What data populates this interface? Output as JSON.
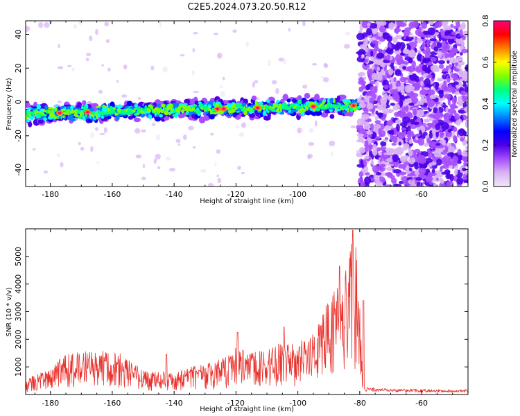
{
  "title": "C2E5.2024.073.20.50.R12",
  "chart_data": [
    {
      "type": "heatmap",
      "xlabel": "Height of straight line (km)",
      "ylabel": "Frequency (Hz)",
      "xlim": [
        -188,
        -45
      ],
      "ylim": [
        -50,
        48
      ],
      "x_ticks": [
        -180,
        -160,
        -140,
        -120,
        -100,
        -80,
        -60
      ],
      "y_ticks": [
        -40,
        -20,
        0,
        20,
        40
      ],
      "band": {
        "center_start_hz": -7,
        "center_end_hz": -2,
        "half_width_hz": 6,
        "x_range": [
          -188,
          -80
        ]
      },
      "noise_region_x": [
        -80,
        -45
      ],
      "hotspots_x": [
        -177,
        -168,
        -126,
        -124,
        -113,
        -95,
        -82
      ],
      "colorbar": {
        "label": "Normalized spectral amplitude",
        "range": [
          0,
          0.8
        ],
        "ticks": [
          "0.0",
          "0.2",
          "0.4",
          "0.6",
          "0.8"
        ],
        "colors": [
          "#f0e6fa",
          "#d9b3f5",
          "#a64dff",
          "#4b00e6",
          "#0000ff",
          "#0080ff",
          "#00ffff",
          "#00ff80",
          "#80ff00",
          "#ffff00",
          "#ff8000",
          "#ff0000",
          "#ff007f"
        ]
      }
    },
    {
      "type": "line",
      "xlabel": "Height of straight line (km)",
      "ylabel": "SNR (10 * v/v)",
      "xlim": [
        -188,
        -45
      ],
      "ylim": [
        0,
        6000
      ],
      "x_ticks": [
        -180,
        -160,
        -140,
        -120,
        -100,
        -80,
        -60
      ],
      "y_ticks": [
        1000,
        2000,
        3000,
        4000,
        5000
      ],
      "color": "#e8322d",
      "envelope": {
        "x": [
          -188,
          -180,
          -177,
          -170,
          -165,
          -160,
          -155,
          -150,
          -140,
          -135,
          -130,
          -125,
          -120,
          -115,
          -110,
          -105,
          -100,
          -95,
          -92,
          -90,
          -88,
          -86,
          -84,
          -83,
          -82,
          -81,
          -80,
          -79,
          -78,
          -70,
          -60,
          -45
        ],
        "y": [
          600,
          900,
          1400,
          1600,
          1500,
          1700,
          1300,
          900,
          800,
          1000,
          1100,
          1300,
          1700,
          1500,
          1700,
          1900,
          1900,
          2200,
          2900,
          3500,
          4200,
          4400,
          4700,
          5300,
          5900,
          5200,
          3200,
          400,
          220,
          180,
          160,
          150
        ]
      },
      "peaks": [
        {
          "x": -142.5,
          "y": 1450
        },
        {
          "x": -119.5,
          "y": 2250
        },
        {
          "x": -104.5,
          "y": 2450
        },
        {
          "x": -86.5,
          "y": 4650
        },
        {
          "x": -82.2,
          "y": 5950
        },
        {
          "x": -78.8,
          "y": 3400
        }
      ]
    }
  ]
}
